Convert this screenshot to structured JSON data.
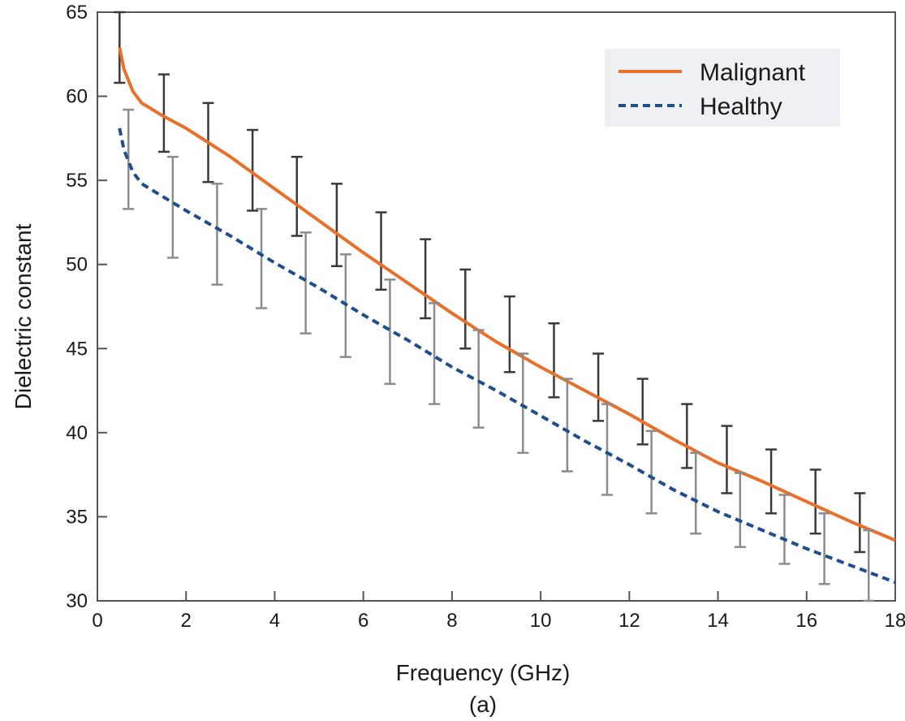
{
  "chart_data": {
    "type": "line",
    "caption": "(a)",
    "xlabel": "Frequency (GHz)",
    "ylabel": "Dielectric constant",
    "xlim": [
      0,
      18
    ],
    "ylim": [
      30,
      65
    ],
    "xticks": [
      0,
      2,
      4,
      6,
      8,
      10,
      12,
      14,
      16,
      18
    ],
    "yticks": [
      30,
      35,
      40,
      45,
      50,
      55,
      60,
      65
    ],
    "grid": false,
    "legend_position": "top-right",
    "series": [
      {
        "name": "Malignant",
        "color": "#e8702a",
        "style": "solid",
        "curve_x": [
          0.5,
          0.6,
          0.8,
          1.0,
          1.5,
          2,
          3,
          4,
          5,
          6,
          7,
          8,
          9,
          10,
          11,
          12,
          13,
          14,
          15,
          16,
          17,
          18
        ],
        "curve_y": [
          62.9,
          61.6,
          60.3,
          59.6,
          58.8,
          58.1,
          56.4,
          54.5,
          52.6,
          50.7,
          48.9,
          47.1,
          45.4,
          43.9,
          42.5,
          41.1,
          39.6,
          38.2,
          37.1,
          35.9,
          34.7,
          33.6
        ],
        "errorbar_x": [
          0.5,
          1.5,
          2.5,
          3.5,
          4.5,
          5.4,
          6.4,
          7.4,
          8.3,
          9.3,
          10.3,
          11.3,
          12.3,
          13.3,
          14.2,
          15.2,
          16.2,
          17.2
        ],
        "errorbar_low": [
          60.8,
          56.7,
          54.9,
          53.2,
          51.7,
          49.9,
          48.5,
          46.8,
          45.0,
          43.6,
          42.1,
          40.7,
          39.3,
          37.9,
          36.4,
          35.2,
          34.0,
          32.9
        ],
        "errorbar_high": [
          65.0,
          61.3,
          59.6,
          58.0,
          56.4,
          54.8,
          53.1,
          51.5,
          49.7,
          48.1,
          46.5,
          44.7,
          43.2,
          41.7,
          40.4,
          39.0,
          37.8,
          36.4
        ],
        "errorbar_color": "#3a3a3a"
      },
      {
        "name": "Healthy",
        "color": "#1f4e8c",
        "style": "dashed",
        "curve_x": [
          0.5,
          0.6,
          0.8,
          1.0,
          1.5,
          2,
          3,
          4,
          5,
          6,
          7,
          8,
          9,
          10,
          11,
          12,
          13,
          14,
          15,
          16,
          17,
          18
        ],
        "curve_y": [
          58.1,
          56.8,
          55.5,
          54.8,
          54.0,
          53.2,
          51.7,
          50.1,
          48.6,
          47.0,
          45.5,
          43.9,
          42.5,
          41.0,
          39.5,
          38.1,
          36.6,
          35.3,
          34.2,
          33.1,
          32.1,
          31.1
        ],
        "errorbar_x": [
          0.7,
          1.7,
          2.7,
          3.7,
          4.7,
          5.6,
          6.6,
          7.6,
          8.6,
          9.6,
          10.6,
          11.5,
          12.5,
          13.5,
          14.5,
          15.5,
          16.4,
          17.4
        ],
        "errorbar_low": [
          53.3,
          50.4,
          48.8,
          47.4,
          45.9,
          44.5,
          42.9,
          41.7,
          40.3,
          38.8,
          37.7,
          36.3,
          35.2,
          34.0,
          33.2,
          32.2,
          31.0,
          30.0
        ],
        "errorbar_high": [
          59.2,
          56.4,
          54.8,
          53.3,
          51.9,
          50.6,
          49.1,
          47.7,
          46.1,
          44.7,
          43.2,
          41.7,
          40.1,
          38.8,
          37.6,
          36.3,
          35.2,
          34.2
        ],
        "errorbar_color": "#8c8c8c"
      }
    ]
  }
}
